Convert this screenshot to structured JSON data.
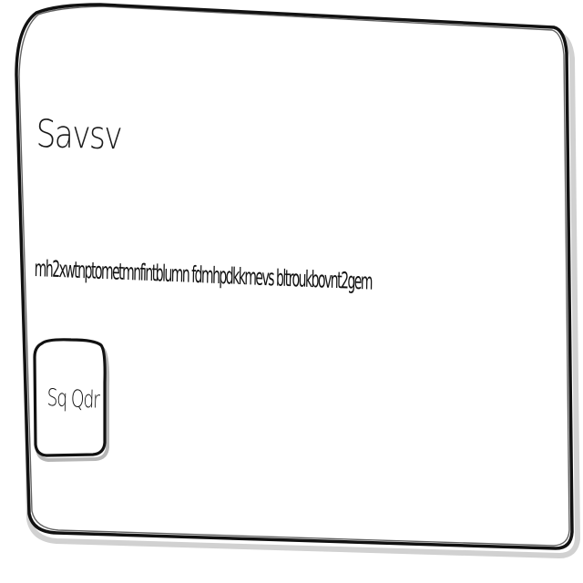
{
  "card": {
    "title": "Savsv",
    "body": "mh2xwtnptometmnfintblumn fdmhpdkkmevs bltroukbovnt2gem",
    "button_label": "Sq Qdr"
  },
  "colors": {
    "background": "#ffffff",
    "ink": "#111111",
    "shadow": "#6b6b6b"
  }
}
